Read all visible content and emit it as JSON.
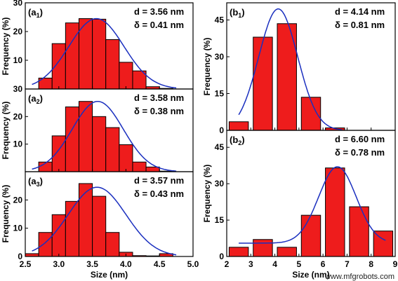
{
  "chart_data": [
    {
      "id": "a1",
      "type": "bar",
      "panel_label": "(a",
      "panel_sub": "1",
      "annotations": [
        "d = 3.56 nm",
        "δ = 0.41 nm"
      ],
      "ylabel": "Frequency (%)",
      "xlabel": "",
      "ylim": [
        0,
        30
      ],
      "yticks": [
        "10",
        "20",
        "30"
      ],
      "bin_width": 0.2,
      "x": [
        2.8,
        3.0,
        3.2,
        3.4,
        3.6,
        3.8,
        4.0,
        4.2,
        4.4,
        4.6
      ],
      "values": [
        3.8,
        15.8,
        23.0,
        24.5,
        24.3,
        17.2,
        9.3,
        6.3,
        0.8,
        0.2
      ],
      "fit": {
        "type": "gaussian",
        "amplitude": 24.5,
        "mean": 3.56,
        "sigma": 0.41
      }
    },
    {
      "id": "a2",
      "type": "bar",
      "panel_label": "(a",
      "panel_sub": "2",
      "annotations": [
        "d = 3.58 nm",
        "δ = 0.38 nm"
      ],
      "ylabel": "Frequency (%)",
      "xlabel": "",
      "ylim": [
        0,
        30
      ],
      "yticks": [
        "10",
        "20",
        "30"
      ],
      "bin_width": 0.2,
      "x": [
        2.8,
        3.0,
        3.2,
        3.4,
        3.6,
        3.8,
        4.0,
        4.2,
        4.4,
        4.6
      ],
      "values": [
        3.5,
        13.0,
        23.5,
        25.5,
        20.0,
        16.0,
        9.8,
        3.5,
        1.7,
        0.2
      ],
      "fit": {
        "type": "gaussian",
        "amplitude": 25.5,
        "mean": 3.58,
        "sigma": 0.38
      }
    },
    {
      "id": "a3",
      "type": "bar",
      "panel_label": "(a",
      "panel_sub": "3",
      "annotations": [
        "d = 3.57 nm",
        "δ = 0.43 nm"
      ],
      "ylabel": "Frequency (%)",
      "xlabel": "Size (nm)",
      "ylim": [
        0,
        30
      ],
      "yticks": [
        "0",
        "10",
        "20"
      ],
      "xticks": [
        "2.5",
        "3.0",
        "3.5",
        "4.0",
        "4.5",
        "5.0"
      ],
      "xlim": [
        2.5,
        5.0
      ],
      "bin_width": 0.2,
      "x": [
        2.6,
        2.8,
        3.0,
        3.2,
        3.4,
        3.6,
        3.8,
        4.0,
        4.2,
        4.4,
        4.6
      ],
      "values": [
        1.0,
        8.5,
        14.8,
        19.5,
        25.8,
        21.3,
        8.5,
        1.5,
        0.3,
        0.2,
        1.0
      ],
      "fit": {
        "type": "gaussian",
        "amplitude": 24.5,
        "mean": 3.57,
        "sigma": 0.43
      }
    },
    {
      "id": "b1",
      "type": "bar",
      "panel_label": "(b",
      "panel_sub": "1",
      "annotations": [
        "d = 4.14 nm",
        "δ = 0.81 nm"
      ],
      "ylabel": "Frequency (%)",
      "xlabel": "",
      "ylim": [
        0,
        52
      ],
      "yticks": [
        "0",
        "15",
        "30",
        "45"
      ],
      "bin_width": 0.8,
      "x": [
        2.5,
        3.5,
        4.5,
        5.5,
        6.5
      ],
      "values": [
        3.5,
        38.0,
        43.5,
        13.5,
        1.0
      ],
      "fit": {
        "type": "gaussian",
        "amplitude": 49.5,
        "mean": 4.14,
        "sigma": 0.81
      }
    },
    {
      "id": "b2",
      "type": "bar",
      "panel_label": "(b",
      "panel_sub": "2",
      "annotations": [
        "d = 6.60 nm",
        "δ = 0.78 nm"
      ],
      "ylabel": "Frequency (%)",
      "xlabel": "Size (nm)",
      "ylim": [
        0,
        52
      ],
      "yticks": [
        "0",
        "15",
        "30",
        "45"
      ],
      "xticks": [
        "2",
        "3",
        "4",
        "5",
        "6",
        "7",
        "8",
        "9"
      ],
      "xlim": [
        2,
        9
      ],
      "bin_width": 0.8,
      "x": [
        2.5,
        3.5,
        4.5,
        5.5,
        6.5,
        7.5,
        8.5
      ],
      "values": [
        3.8,
        7.0,
        3.8,
        17.0,
        36.5,
        20.5,
        10.5
      ],
      "fit": {
        "type": "gaussian",
        "amplitude": 31.5,
        "mean": 6.6,
        "sigma": 0.78,
        "offset": 5.5
      }
    }
  ],
  "watermark": "www.mfgrobots.com"
}
